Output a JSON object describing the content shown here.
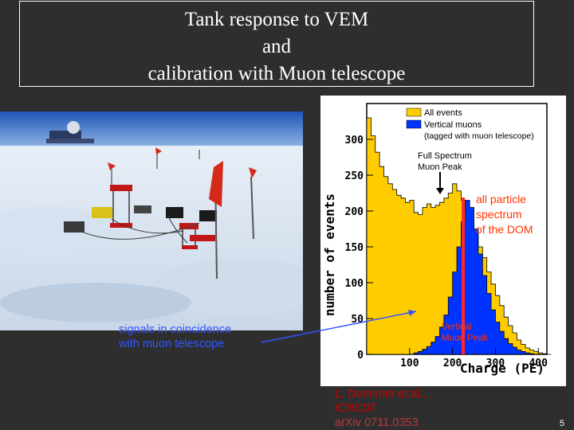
{
  "title": {
    "line1": "Tank response to VEM",
    "line2": "and",
    "line3": "calibration with  Muon telescope"
  },
  "annotations": {
    "coincidence_line1": "signals in coincidence",
    "coincidence_line2": "with muon telescope",
    "dom_line1": "all particle",
    "dom_line2": "spectrum",
    "dom_line3": "of the DOM",
    "vertical_line1": "Vertical",
    "vertical_line2": "Muon Peak",
    "full_line1": "Full Spectrum",
    "full_line2": "Muon Peak"
  },
  "citation": {
    "line1": "L. Demirors et al.,",
    "line2": "ICRC07",
    "line3": "arXiv 0711.0353"
  },
  "slide_number": "5",
  "colors": {
    "all_events": "#ffcc00",
    "vertical_muons": "#0033ff",
    "annotation_blue": "#3355ff",
    "annotation_red": "#ff3300",
    "citation_red": "#cc0000"
  },
  "chart_data": {
    "type": "area",
    "xlabel": "Charge (PE)",
    "ylabel": "number of events",
    "xlim": [
      0,
      420
    ],
    "ylim": [
      0,
      350
    ],
    "x_ticks": [
      "100",
      "200",
      "300",
      "400"
    ],
    "y_ticks": [
      "0",
      "50",
      "100",
      "150",
      "200",
      "250",
      "300"
    ],
    "legend_position": "top-right",
    "legend": {
      "entry1": "All events",
      "entry2": "Vertical muons",
      "entry2_note": "(tagged with muon telescope)"
    },
    "series": [
      {
        "name": "All events",
        "x": [
          0,
          10,
          20,
          30,
          40,
          50,
          60,
          70,
          80,
          90,
          100,
          110,
          120,
          130,
          140,
          150,
          160,
          170,
          180,
          190,
          200,
          210,
          220,
          230,
          240,
          250,
          260,
          270,
          280,
          290,
          300,
          310,
          320,
          330,
          340,
          350,
          360,
          370,
          380,
          390,
          400,
          410,
          420
        ],
        "values": [
          330,
          305,
          282,
          262,
          248,
          238,
          230,
          222,
          218,
          212,
          215,
          198,
          195,
          205,
          210,
          205,
          208,
          212,
          218,
          225,
          238,
          228,
          215,
          198,
          182,
          165,
          150,
          135,
          115,
          98,
          82,
          68,
          52,
          40,
          30,
          20,
          14,
          9,
          6,
          4,
          2,
          1,
          0
        ]
      },
      {
        "name": "Vertical muons",
        "x": [
          100,
          110,
          120,
          130,
          140,
          150,
          160,
          170,
          180,
          190,
          200,
          210,
          220,
          230,
          240,
          250,
          260,
          270,
          280,
          290,
          300,
          310,
          320,
          330,
          340,
          350,
          360,
          370,
          380,
          390,
          400
        ],
        "values": [
          0,
          2,
          4,
          7,
          11,
          17,
          25,
          38,
          55,
          80,
          115,
          150,
          185,
          215,
          205,
          175,
          140,
          110,
          85,
          62,
          45,
          32,
          22,
          15,
          10,
          6,
          4,
          2,
          1,
          0,
          0
        ]
      }
    ],
    "markers": [
      {
        "label": "Full Spectrum Muon Peak",
        "x": 200
      },
      {
        "label": "Vertical Muon Peak",
        "x": 225
      }
    ]
  }
}
